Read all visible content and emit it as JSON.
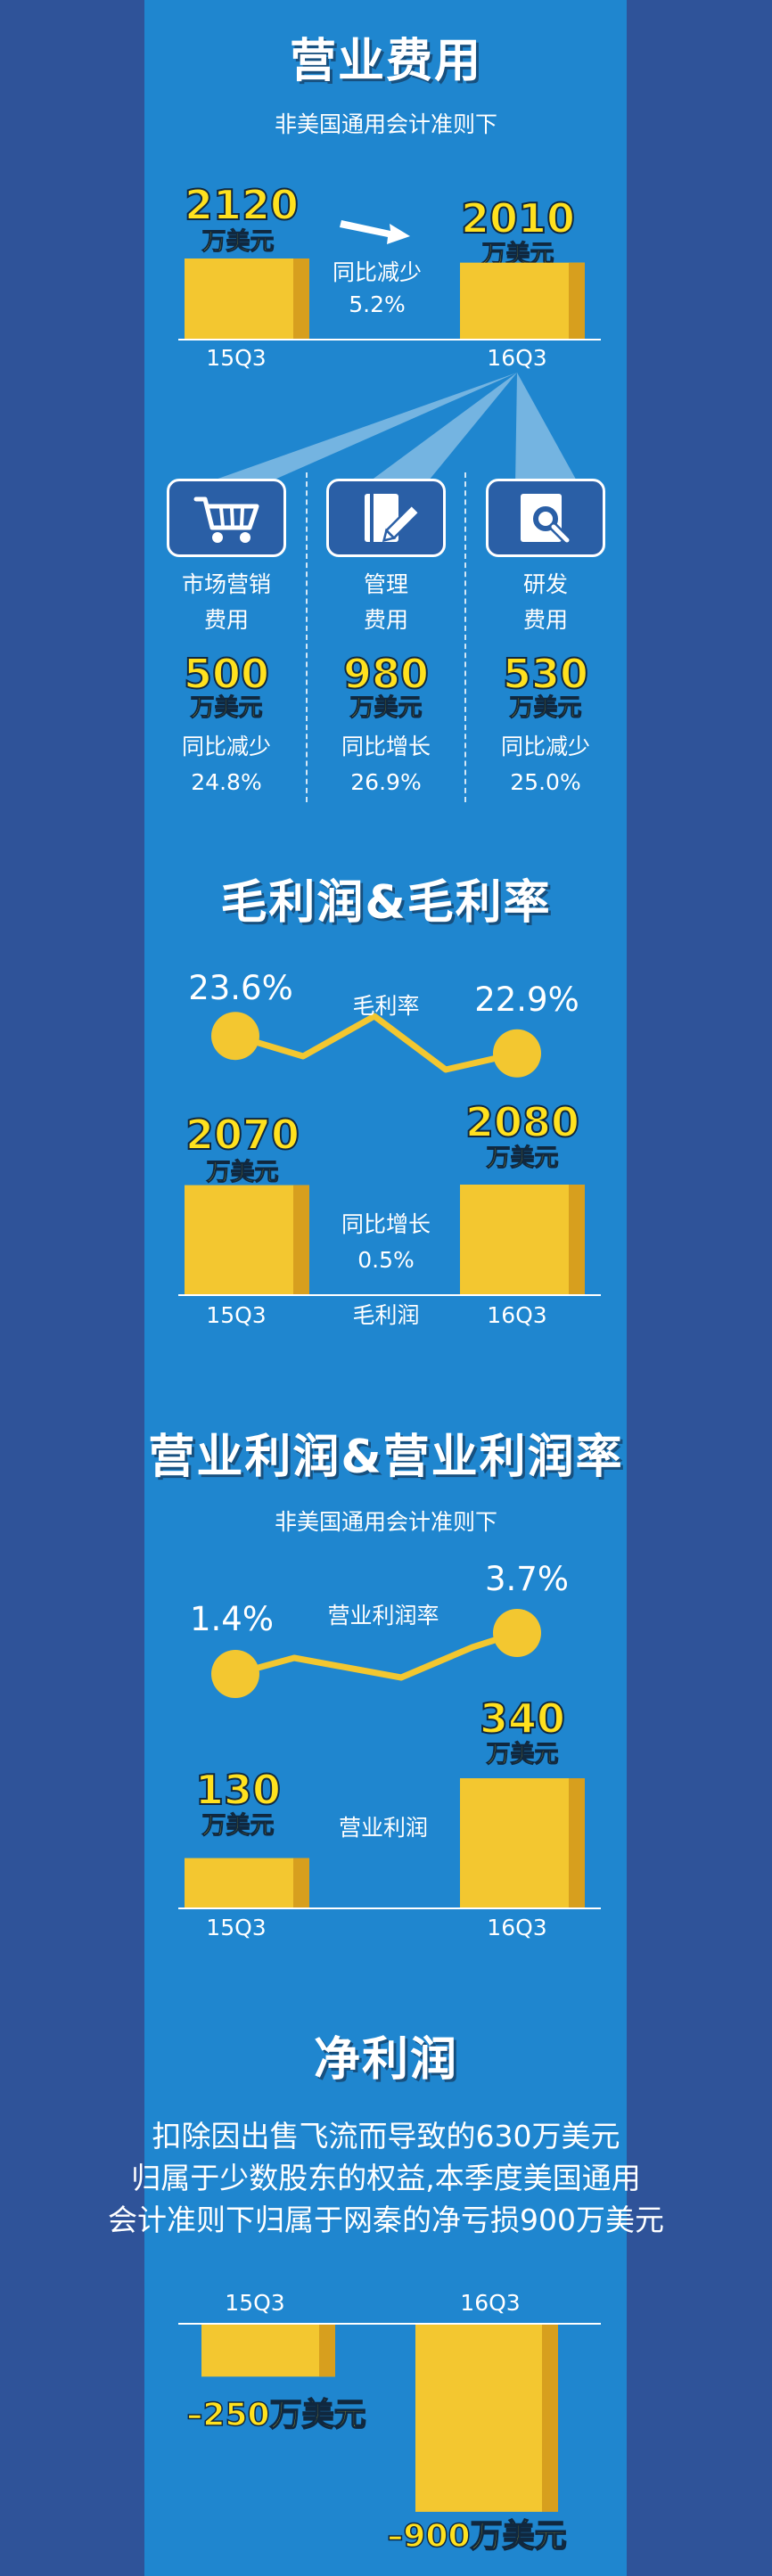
{
  "colors": {
    "background": "#2f5399",
    "panel": "#1f86cf",
    "bar": "#f3c730",
    "bar_shadow": "#d79f1e",
    "accent_text": "#ffe11e"
  },
  "sections": {
    "opex": {
      "title": "营业费用",
      "subtitle": "非美国通用会计准则下",
      "change_label": "同比减少",
      "change_value": "5.2%",
      "periods": [
        "15Q3",
        "16Q3"
      ],
      "values": [
        "2120",
        "2010"
      ],
      "unit": "万美元",
      "breakdown": [
        {
          "label_line1": "市场营销",
          "label_line2": "费用",
          "value": "500",
          "unit": "万美元",
          "change_label": "同比减少",
          "change_value": "24.8%",
          "icon": "cart-icon"
        },
        {
          "label_line1": "管理",
          "label_line2": "费用",
          "value": "980",
          "unit": "万美元",
          "change_label": "同比增长",
          "change_value": "26.9%",
          "icon": "document-pen-icon"
        },
        {
          "label_line1": "研发",
          "label_line2": "费用",
          "value": "530",
          "unit": "万美元",
          "change_label": "同比减少",
          "change_value": "25.0%",
          "icon": "magnifier-icon"
        }
      ]
    },
    "gross": {
      "title": "毛利润&毛利率",
      "margin_label": "毛利率",
      "margins": [
        "23.6%",
        "22.9%"
      ],
      "values": [
        "2070",
        "2080"
      ],
      "unit": "万美元",
      "change_label": "同比增长",
      "change_value": "0.5%",
      "bar_label": "毛利润",
      "periods": [
        "15Q3",
        "16Q3"
      ]
    },
    "operating": {
      "title": "营业利润&营业利润率",
      "subtitle": "非美国通用会计准则下",
      "margin_label": "营业利润率",
      "margins": [
        "1.4%",
        "3.7%"
      ],
      "values": [
        "130",
        "340"
      ],
      "unit": "万美元",
      "bar_label": "营业利润",
      "periods": [
        "15Q3",
        "16Q3"
      ]
    },
    "net": {
      "title": "净利润",
      "description_lines": [
        "扣除因出售飞流而导致的630万美元",
        "归属于少数股东的权益,本季度美国通用",
        "会计准则下归属于网秦的净亏损900万美元"
      ],
      "periods": [
        "15Q3",
        "16Q3"
      ],
      "value_labels": [
        "–250万美元",
        "–900万美元"
      ]
    }
  },
  "chart_data": [
    {
      "type": "bar",
      "title": "营业费用",
      "subtitle": "非美国通用会计准则下",
      "categories": [
        "15Q3",
        "16Q3"
      ],
      "values": [
        2120,
        2010
      ],
      "ylabel": "",
      "unit": "万美元",
      "annotation": "同比减少 5.2%"
    },
    {
      "type": "table",
      "title": "营业费用",
      "rows": [
        {
          "name": "市场营销费用",
          "value": 500,
          "unit": "万美元",
          "change": "同比减少 24.8%"
        },
        {
          "name": "管理费用",
          "value": 980,
          "unit": "万美元",
          "change": "同比增长 26.9%"
        },
        {
          "name": "研发费用",
          "value": 530,
          "unit": "万美元",
          "change": "同比减少 25.0%"
        }
      ]
    },
    {
      "type": "bar",
      "title": "毛利润&毛利率",
      "categories": [
        "15Q3",
        "16Q3"
      ],
      "values": [
        2070,
        2080
      ],
      "unit": "万美元",
      "xlabel": "毛利润",
      "annotation": "同比增长 0.5%"
    },
    {
      "type": "line",
      "title": "毛利润&毛利率",
      "categories": [
        "15Q3",
        "16Q3"
      ],
      "values": [
        23.6,
        22.9
      ],
      "unit": "%",
      "series_label": "毛利率"
    },
    {
      "type": "bar",
      "title": "营业利润&营业利润率",
      "subtitle": "非美国通用会计准则下",
      "categories": [
        "15Q3",
        "16Q3"
      ],
      "values": [
        130,
        340
      ],
      "unit": "万美元",
      "xlabel": "营业利润"
    },
    {
      "type": "line",
      "title": "营业利润&营业利润率",
      "categories": [
        "15Q3",
        "16Q3"
      ],
      "values": [
        1.4,
        3.7
      ],
      "unit": "%",
      "series_label": "营业利润率"
    },
    {
      "type": "bar",
      "title": "净利润",
      "categories": [
        "15Q3",
        "16Q3"
      ],
      "values": [
        -250,
        -900
      ],
      "unit": "万美元"
    }
  ]
}
